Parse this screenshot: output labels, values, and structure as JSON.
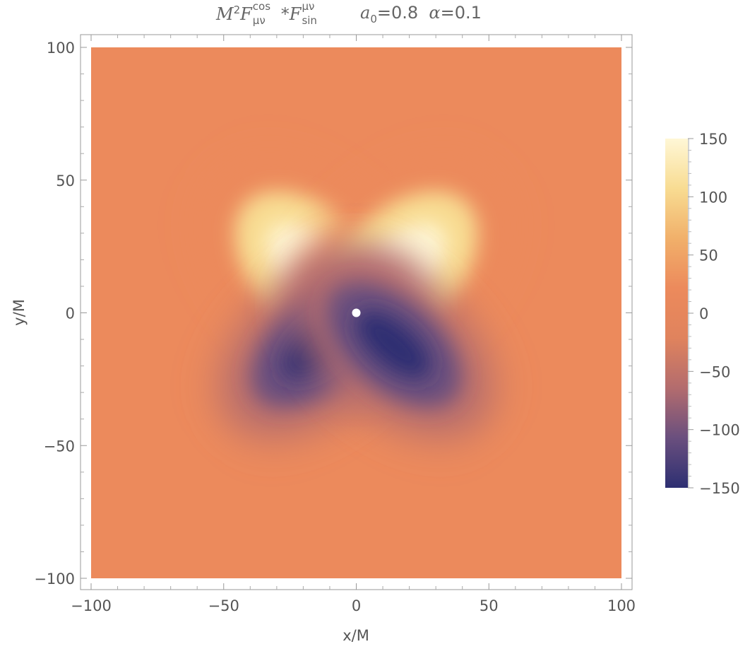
{
  "chart_data": {
    "type": "heatmap",
    "title_parts": {
      "lhs_base": "M",
      "lhs_exp": "2",
      "F1": "F",
      "F1_sup": "cos",
      "F1_sub": "μν",
      "op": "*",
      "F2": "F",
      "F2_sup": "μν",
      "F2_sub": "sin",
      "param1": "a",
      "param1_sub": "0",
      "param1_val": "=0.8",
      "param2": "α",
      "param2_val": "=0.1"
    },
    "xlabel": "x/M",
    "ylabel": "y/M",
    "xlim": [
      -100,
      100
    ],
    "ylim": [
      -100,
      100
    ],
    "x_ticks": [
      "−100",
      "−50",
      "0",
      "50",
      "100"
    ],
    "x_tick_values": [
      -100,
      -50,
      0,
      50,
      100
    ],
    "y_ticks": [
      "100",
      "50",
      "0",
      "−50",
      "−100"
    ],
    "y_tick_values": [
      100,
      50,
      0,
      -50,
      -100
    ],
    "colorbar": {
      "range": [
        -150,
        150
      ],
      "ticks": [
        "150",
        "100",
        "50",
        "0",
        "−50",
        "−100",
        "−150"
      ],
      "tick_values": [
        150,
        100,
        50,
        0,
        -50,
        -100,
        -150
      ],
      "colors": [
        "#2d2f72",
        "#6a4f7e",
        "#b36c6e",
        "#e0835d",
        "#ec8a5c",
        "#f1b06a",
        "#f8dc92",
        "#fff7d6"
      ]
    },
    "features": [
      {
        "lobe": "upper-left",
        "center": [
          -16,
          16
        ],
        "peak": 150
      },
      {
        "lobe": "upper-right",
        "center": [
          16,
          16
        ],
        "peak": 150
      },
      {
        "lobe": "lower-left",
        "center": [
          -14,
          -12
        ],
        "peak": -150
      },
      {
        "lobe": "lower-right",
        "center": [
          14,
          -12
        ],
        "peak": -150
      }
    ],
    "background_value": 0,
    "marker": {
      "x": 0,
      "y": 0,
      "color": "#ffffff"
    }
  }
}
